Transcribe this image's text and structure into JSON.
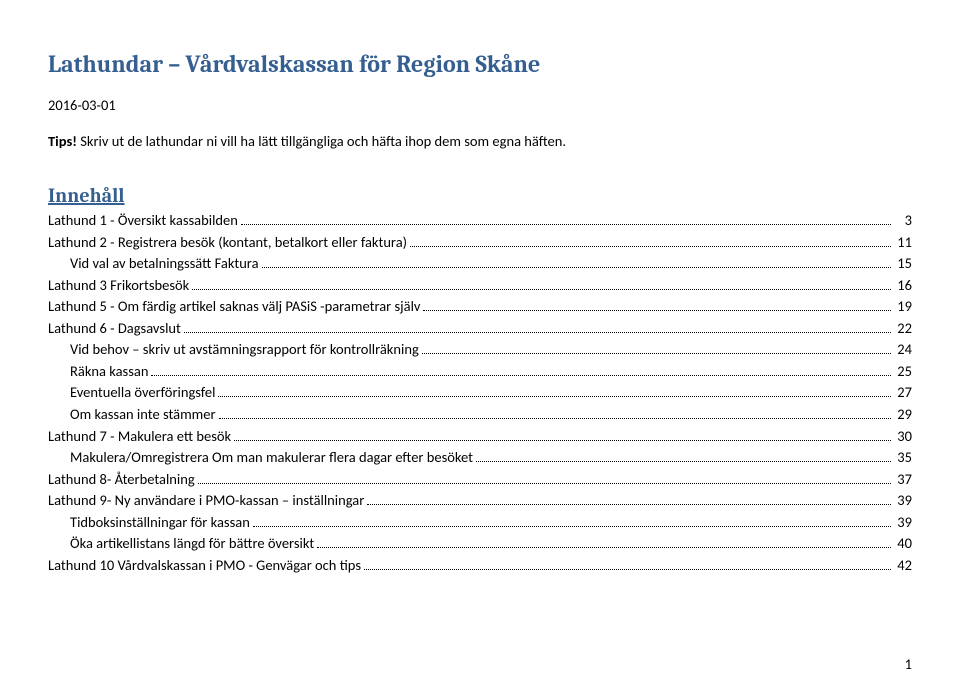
{
  "title": "Lathundar – Vårdvalskassan för Region Skåne",
  "date": "2016-03-01",
  "tip_label": "Tips!",
  "tip_text": " Skriv ut de lathundar ni vill ha lätt tillgängliga och häfta ihop dem som egna häften.",
  "toc_heading": "Innehåll",
  "page_number": "1",
  "colors": {
    "heading": "#365f91",
    "text": "#000000",
    "background": "#ffffff"
  },
  "toc": [
    {
      "label": "Lathund 1 - Översikt kassabilden",
      "page": "3",
      "level": 0
    },
    {
      "label": "Lathund 2 - Registrera besök (kontant, betalkort eller faktura)",
      "page": "11",
      "level": 0
    },
    {
      "label": "Vid val av betalningssätt Faktura",
      "page": "15",
      "level": 1
    },
    {
      "label": "Lathund 3 Frikortsbesök",
      "page": "16",
      "level": 0
    },
    {
      "label": "Lathund 5 - Om färdig artikel saknas välj PASiS -parametrar själv",
      "page": "19",
      "level": 0
    },
    {
      "label": "Lathund 6 - Dagsavslut",
      "page": "22",
      "level": 0
    },
    {
      "label": "Vid behov – skriv ut avstämningsrapport för kontrollräkning",
      "page": "24",
      "level": 1
    },
    {
      "label": "Räkna kassan",
      "page": "25",
      "level": 1
    },
    {
      "label": "Eventuella överföringsfel",
      "page": "27",
      "level": 1
    },
    {
      "label": "Om kassan inte stämmer",
      "page": "29",
      "level": 1
    },
    {
      "label": "Lathund 7 - Makulera ett   besök",
      "page": "30",
      "level": 0
    },
    {
      "label": "Makulera/Omregistrera Om man makulerar flera dagar efter besöket",
      "page": "35",
      "level": 1
    },
    {
      "label": "Lathund 8- Återbetalning",
      "page": "37",
      "level": 0
    },
    {
      "label": "Lathund 9- Ny användare i PMO-kassan – inställningar",
      "page": "39",
      "level": 0
    },
    {
      "label": "Tidboksinställningar för kassan",
      "page": "39",
      "level": 1
    },
    {
      "label": "Öka artikellistans längd för bättre översikt",
      "page": "40",
      "level": 1
    },
    {
      "label": "Lathund 10 Vårdvalskassan i PMO - Genvägar och tips",
      "page": "42",
      "level": 0
    }
  ]
}
